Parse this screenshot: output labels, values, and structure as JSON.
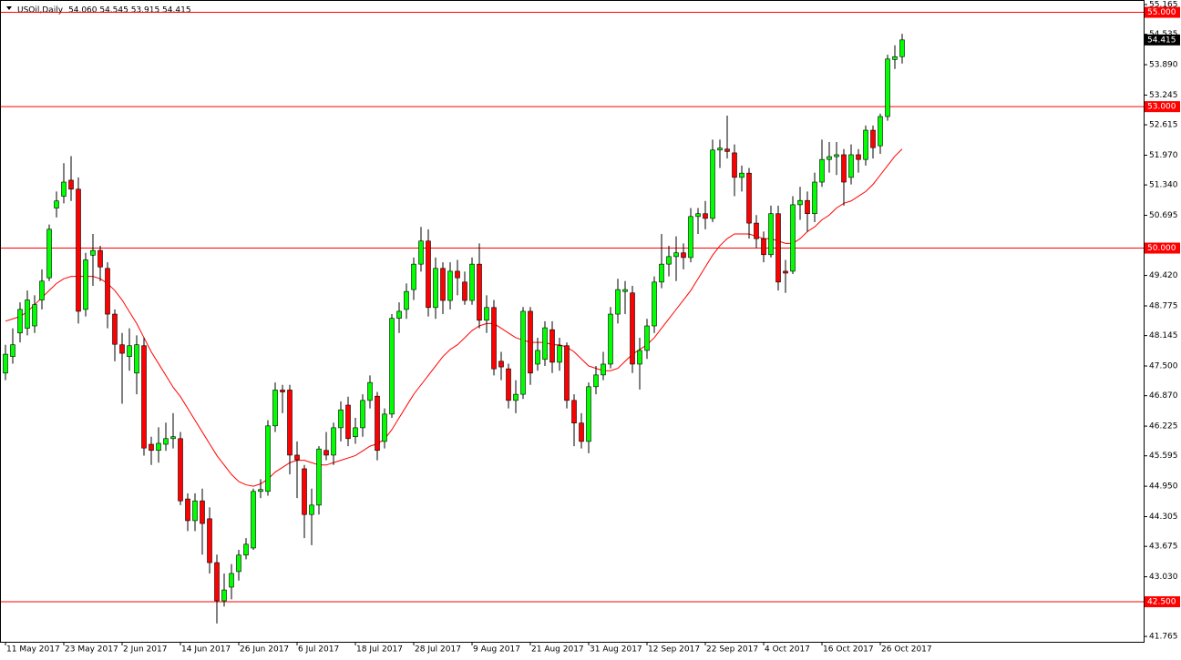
{
  "chart_data": {
    "type": "candlestick",
    "title": "USOil,Daily",
    "quote": "54.060 54.545 53.915 54.415",
    "categories": [
      "11 May 2017",
      null,
      null,
      null,
      null,
      null,
      null,
      null,
      "23 May 2017",
      null,
      null,
      null,
      null,
      null,
      null,
      null,
      "2 Jun 2017",
      null,
      null,
      null,
      null,
      null,
      null,
      null,
      "14 Jun 2017",
      null,
      null,
      null,
      null,
      null,
      null,
      null,
      "26 Jun 2017",
      null,
      null,
      null,
      null,
      null,
      null,
      null,
      "6 Jul 2017",
      null,
      null,
      null,
      null,
      null,
      null,
      null,
      "18 Jul 2017",
      null,
      null,
      null,
      null,
      null,
      null,
      null,
      "28 Jul 2017",
      null,
      null,
      null,
      null,
      null,
      null,
      null,
      "9 Aug 2017",
      null,
      null,
      null,
      null,
      null,
      null,
      null,
      "21 Aug 2017",
      null,
      null,
      null,
      null,
      null,
      null,
      null,
      "31 Aug 2017",
      null,
      null,
      null,
      null,
      null,
      null,
      null,
      "12 Sep 2017",
      null,
      null,
      null,
      null,
      null,
      null,
      null,
      "22 Sep 2017",
      null,
      null,
      null,
      null,
      null,
      null,
      null,
      "4 Oct 2017",
      null,
      null,
      null,
      null,
      null,
      null,
      null,
      "16 Oct 2017",
      null,
      null,
      null,
      null,
      null,
      null,
      null,
      "26 Oct 2017",
      null,
      null,
      null
    ],
    "open": [
      47.35,
      47.7,
      48.2,
      48.3,
      48.35,
      48.9,
      49.37,
      50.85,
      51.1,
      51.44,
      51.25,
      48.7,
      49.85,
      49.95,
      49.57,
      48.6,
      47.95,
      47.7,
      47.35,
      47.93,
      45.84,
      45.71,
      45.84,
      45.96,
      45.96,
      44.68,
      44.22,
      44.64,
      44.26,
      43.33,
      42.52,
      42.81,
      43.14,
      43.49,
      43.64,
      44.84,
      44.84,
      46.23,
      46.99,
      46.99,
      45.61,
      45.32,
      44.35,
      44.55,
      45.71,
      45.61,
      46.19,
      46.67,
      46.0,
      46.19,
      46.77,
      46.86,
      45.9,
      46.48,
      48.51,
      48.7,
      49.12,
      49.66,
      50.15,
      48.74,
      49.57,
      48.89,
      49.51,
      49.28,
      48.89,
      49.66,
      48.47,
      48.74,
      47.6,
      47.44,
      46.77,
      46.9,
      48.66,
      47.54,
      47.64,
      48.27,
      47.58,
      47.93,
      46.77,
      46.29,
      45.9,
      47.06,
      47.31,
      47.54,
      48.6,
      49.08,
      49.05,
      47.54,
      47.83,
      48.35,
      49.28,
      49.66,
      49.82,
      49.9,
      49.8,
      50.67,
      50.73,
      50.63,
      52.08,
      52.1,
      52.02,
      51.5,
      51.59,
      50.53,
      50.2,
      49.86,
      50.73,
      49.51,
      49.51,
      50.92,
      51.01,
      50.73,
      51.4,
      51.88,
      51.94,
      51.98,
      51.5,
      51.98,
      51.88,
      52.5,
      52.17,
      52.79,
      54.0,
      54.06
    ],
    "high": [
      47.95,
      48.3,
      48.85,
      49.1,
      49.0,
      49.55,
      50.5,
      51.2,
      51.8,
      51.95,
      51.5,
      49.9,
      50.3,
      50.05,
      49.7,
      48.7,
      48.2,
      48.3,
      48.15,
      48.1,
      46.0,
      46.2,
      46.3,
      46.5,
      46.1,
      44.8,
      44.8,
      44.9,
      44.5,
      43.5,
      43.1,
      43.3,
      43.6,
      43.85,
      44.9,
      45.1,
      46.35,
      47.15,
      47.1,
      47.1,
      45.9,
      45.4,
      44.9,
      45.8,
      46.1,
      46.3,
      46.75,
      46.85,
      46.4,
      46.9,
      47.3,
      46.95,
      46.6,
      48.6,
      48.85,
      49.25,
      49.8,
      50.45,
      50.4,
      49.8,
      49.7,
      49.7,
      49.75,
      49.5,
      49.8,
      50.1,
      49.0,
      48.9,
      47.8,
      47.55,
      47.2,
      48.75,
      48.75,
      48.1,
      48.45,
      48.45,
      48.1,
      48.0,
      46.9,
      46.5,
      47.15,
      47.5,
      47.8,
      48.75,
      49.35,
      49.3,
      49.2,
      48.1,
      48.5,
      49.4,
      50.3,
      50.05,
      50.25,
      50.1,
      50.85,
      50.85,
      51.0,
      52.3,
      52.3,
      52.81,
      52.2,
      51.75,
      51.7,
      50.7,
      50.35,
      50.9,
      50.9,
      49.75,
      51.1,
      51.3,
      51.2,
      51.6,
      52.3,
      52.25,
      52.25,
      52.1,
      52.2,
      52.1,
      52.6,
      52.6,
      52.85,
      54.1,
      54.3,
      54.545
    ],
    "low": [
      47.2,
      47.55,
      48.0,
      48.15,
      48.2,
      48.7,
      49.3,
      50.65,
      50.95,
      51.0,
      48.4,
      48.55,
      49.2,
      49.3,
      48.3,
      47.6,
      46.7,
      47.4,
      46.9,
      45.6,
      45.4,
      45.45,
      45.7,
      45.75,
      44.55,
      44.0,
      44.0,
      43.5,
      43.1,
      42.04,
      42.4,
      42.55,
      42.95,
      43.4,
      43.6,
      44.7,
      44.75,
      46.1,
      46.5,
      45.2,
      44.7,
      43.85,
      43.7,
      44.35,
      45.5,
      45.4,
      45.9,
      45.8,
      45.85,
      46.0,
      46.6,
      45.5,
      45.75,
      46.4,
      48.2,
      48.5,
      48.9,
      49.5,
      48.55,
      48.5,
      48.6,
      48.7,
      49.0,
      48.8,
      48.8,
      48.3,
      48.2,
      47.3,
      47.2,
      46.6,
      46.5,
      46.8,
      47.1,
      47.4,
      47.5,
      47.35,
      47.4,
      46.6,
      45.8,
      45.75,
      45.65,
      46.9,
      47.2,
      47.45,
      48.4,
      48.6,
      47.35,
      47.0,
      47.65,
      48.2,
      49.15,
      49.4,
      49.3,
      49.55,
      49.7,
      50.3,
      50.4,
      50.55,
      51.7,
      51.9,
      51.1,
      51.2,
      50.2,
      50.0,
      49.7,
      49.8,
      49.1,
      49.05,
      49.45,
      50.6,
      50.35,
      50.55,
      51.3,
      51.6,
      51.55,
      50.9,
      51.35,
      51.6,
      51.75,
      51.9,
      52.0,
      52.7,
      53.8,
      53.915
    ],
    "close": [
      47.75,
      47.95,
      48.7,
      48.9,
      48.8,
      49.3,
      50.4,
      51.0,
      51.4,
      51.25,
      48.66,
      49.75,
      49.95,
      49.6,
      48.6,
      47.96,
      47.77,
      47.93,
      47.95,
      45.76,
      45.71,
      45.86,
      45.96,
      46.0,
      44.64,
      44.22,
      44.64,
      44.16,
      43.33,
      42.52,
      42.75,
      43.1,
      43.49,
      43.72,
      44.84,
      44.88,
      46.23,
      46.99,
      46.95,
      45.61,
      45.51,
      44.35,
      44.55,
      45.74,
      45.61,
      46.19,
      46.57,
      45.96,
      46.19,
      46.77,
      47.15,
      45.71,
      46.48,
      48.51,
      48.66,
      49.08,
      49.66,
      50.15,
      48.74,
      49.57,
      48.89,
      49.51,
      49.37,
      48.89,
      49.66,
      48.47,
      48.74,
      47.44,
      47.48,
      46.77,
      46.9,
      48.66,
      47.35,
      47.83,
      48.31,
      47.58,
      47.93,
      46.77,
      46.29,
      45.9,
      47.06,
      47.31,
      47.54,
      48.6,
      49.12,
      49.12,
      47.54,
      47.83,
      48.35,
      49.28,
      49.66,
      49.82,
      49.9,
      49.8,
      50.67,
      50.73,
      50.63,
      52.08,
      52.12,
      52.05,
      51.5,
      51.59,
      50.53,
      50.2,
      49.86,
      50.73,
      49.28,
      49.47,
      50.92,
      51.01,
      50.73,
      51.4,
      51.88,
      51.94,
      51.98,
      51.4,
      51.98,
      51.88,
      52.5,
      52.13,
      52.79,
      54.01,
      54.06,
      54.415
    ],
    "up_color": "#00ff00",
    "down_color": "#ff0000",
    "ma": {
      "color": "#ff0000",
      "values": [
        48.45,
        48.5,
        48.55,
        48.65,
        48.8,
        48.95,
        49.1,
        49.25,
        49.35,
        49.4,
        49.4,
        49.4,
        49.4,
        49.35,
        49.25,
        49.1,
        48.9,
        48.65,
        48.4,
        48.1,
        47.8,
        47.55,
        47.3,
        47.05,
        46.85,
        46.6,
        46.35,
        46.1,
        45.85,
        45.6,
        45.4,
        45.2,
        45.05,
        44.98,
        44.95,
        45.0,
        45.1,
        45.25,
        45.35,
        45.45,
        45.5,
        45.5,
        45.45,
        45.4,
        45.4,
        45.45,
        45.5,
        45.55,
        45.6,
        45.7,
        45.8,
        45.85,
        45.95,
        46.15,
        46.4,
        46.65,
        46.9,
        47.1,
        47.3,
        47.5,
        47.7,
        47.85,
        47.95,
        48.1,
        48.25,
        48.35,
        48.4,
        48.4,
        48.3,
        48.2,
        48.1,
        48.05,
        48.0,
        48.0,
        48.0,
        47.95,
        47.95,
        47.9,
        47.8,
        47.65,
        47.5,
        47.45,
        47.4,
        47.4,
        47.45,
        47.6,
        47.75,
        47.85,
        47.95,
        48.1,
        48.3,
        48.5,
        48.7,
        48.9,
        49.1,
        49.35,
        49.6,
        49.85,
        50.05,
        50.2,
        50.3,
        50.3,
        50.3,
        50.25,
        50.2,
        50.2,
        50.15,
        50.1,
        50.1,
        50.2,
        50.35,
        50.45,
        50.6,
        50.7,
        50.85,
        50.95,
        51.0,
        51.1,
        51.2,
        51.35,
        51.55,
        51.75,
        51.95,
        52.1
      ]
    },
    "levels": [
      {
        "value": 55,
        "label": "55.000"
      },
      {
        "value": 53,
        "label": "53.000"
      },
      {
        "value": 50,
        "label": "50.000"
      },
      {
        "value": 42.5,
        "label": "42.500"
      }
    ],
    "level_color": "#ff0000",
    "last_price": 54.415,
    "ylim": [
      41.651,
      55.165
    ],
    "yticks": [
      55.165,
      54.535,
      {
        "value": 53.89,
        "label": "53.890"
      },
      53.245,
      52.615,
      {
        "value": 51.97,
        "label": "51.970"
      },
      {
        "value": 51.34,
        "label": "51.340"
      },
      50.695,
      {
        "value": 49.42,
        "label": "49.420"
      },
      48.775,
      48.145,
      {
        "value": 47.5,
        "label": "47.500"
      },
      {
        "value": 46.87,
        "label": "46.870"
      },
      46.225,
      45.595,
      {
        "value": 44.95,
        "label": "44.950"
      },
      44.305,
      43.675,
      {
        "value": 43.03,
        "label": "43.030"
      },
      41.765
    ]
  }
}
